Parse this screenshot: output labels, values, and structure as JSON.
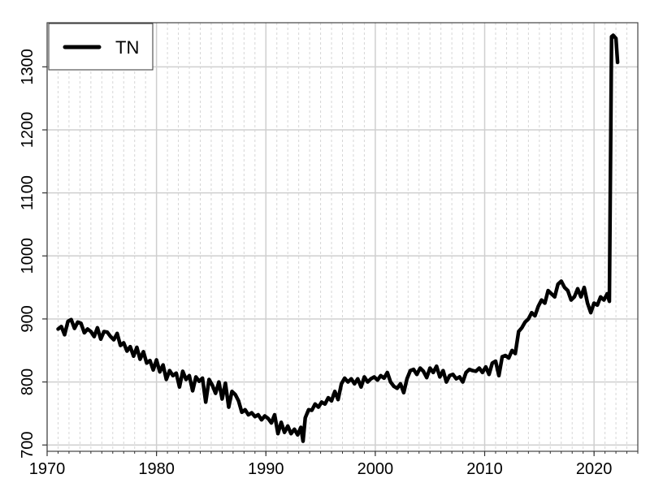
{
  "chart_data": {
    "type": "line",
    "title": "",
    "xlabel": "",
    "ylabel": "",
    "xlim": [
      1970,
      2024
    ],
    "ylim": [
      690,
      1370
    ],
    "x_ticks": [
      1970,
      1980,
      1990,
      2000,
      2010,
      2020
    ],
    "y_ticks": [
      700,
      800,
      900,
      1000,
      1100,
      1200,
      1300
    ],
    "grid": true,
    "legend": {
      "position": "top-left",
      "entries": [
        "TN"
      ]
    },
    "series": [
      {
        "name": "TN",
        "color": "#000000",
        "x": [
          1971.0,
          1971.3,
          1971.6,
          1971.9,
          1972.2,
          1972.5,
          1972.8,
          1973.1,
          1973.4,
          1973.7,
          1974.0,
          1974.3,
          1974.6,
          1974.9,
          1975.2,
          1975.5,
          1975.8,
          1976.1,
          1976.4,
          1976.7,
          1977.0,
          1977.3,
          1977.6,
          1977.9,
          1978.2,
          1978.5,
          1978.8,
          1979.1,
          1979.4,
          1979.7,
          1980.0,
          1980.3,
          1980.6,
          1980.9,
          1981.2,
          1981.5,
          1981.8,
          1982.1,
          1982.4,
          1982.7,
          1983.0,
          1983.3,
          1983.6,
          1983.9,
          1984.2,
          1984.5,
          1984.8,
          1985.1,
          1985.4,
          1985.7,
          1986.0,
          1986.3,
          1986.6,
          1986.9,
          1987.2,
          1987.5,
          1987.8,
          1988.1,
          1988.4,
          1988.7,
          1989.0,
          1989.3,
          1989.6,
          1989.9,
          1990.2,
          1990.5,
          1990.8,
          1991.1,
          1991.4,
          1991.7,
          1992.0,
          1992.3,
          1992.6,
          1992.9,
          1993.2,
          1993.4,
          1993.6,
          1993.9,
          1994.2,
          1994.5,
          1994.8,
          1995.1,
          1995.4,
          1995.7,
          1996.0,
          1996.3,
          1996.6,
          1996.9,
          1997.2,
          1997.5,
          1997.8,
          1998.1,
          1998.4,
          1998.7,
          1999.0,
          1999.3,
          1999.6,
          1999.9,
          2000.2,
          2000.5,
          2000.8,
          2001.1,
          2001.4,
          2001.7,
          2002.0,
          2002.3,
          2002.6,
          2002.9,
          2003.2,
          2003.5,
          2003.8,
          2004.1,
          2004.4,
          2004.7,
          2005.0,
          2005.3,
          2005.6,
          2005.9,
          2006.2,
          2006.5,
          2006.8,
          2007.1,
          2007.4,
          2007.7,
          2008.0,
          2008.3,
          2008.6,
          2008.9,
          2009.2,
          2009.5,
          2009.8,
          2010.1,
          2010.4,
          2010.7,
          2011.0,
          2011.3,
          2011.6,
          2011.9,
          2012.2,
          2012.5,
          2012.8,
          2013.1,
          2013.4,
          2013.7,
          2014.0,
          2014.3,
          2014.6,
          2014.9,
          2015.2,
          2015.5,
          2015.8,
          2016.1,
          2016.4,
          2016.7,
          2017.0,
          2017.3,
          2017.6,
          2017.9,
          2018.2,
          2018.5,
          2018.8,
          2019.1,
          2019.4,
          2019.7,
          2020.0,
          2020.3,
          2020.6,
          2020.9,
          2021.2,
          2021.4,
          2021.6,
          2021.75,
          2022.0,
          2022.15
        ],
        "y": [
          884,
          888,
          875,
          896,
          899,
          885,
          895,
          893,
          878,
          884,
          880,
          872,
          886,
          868,
          880,
          879,
          872,
          867,
          877,
          858,
          862,
          849,
          856,
          841,
          855,
          836,
          848,
          830,
          834,
          819,
          835,
          816,
          827,
          804,
          818,
          810,
          814,
          792,
          817,
          804,
          810,
          786,
          808,
          801,
          806,
          768,
          804,
          795,
          782,
          800,
          773,
          798,
          760,
          785,
          780,
          770,
          752,
          756,
          748,
          751,
          745,
          748,
          740,
          746,
          742,
          735,
          748,
          718,
          736,
          720,
          730,
          718,
          725,
          716,
          728,
          706,
          743,
          756,
          755,
          765,
          760,
          768,
          765,
          775,
          770,
          785,
          772,
          797,
          806,
          800,
          805,
          797,
          805,
          792,
          808,
          800,
          805,
          808,
          803,
          810,
          806,
          815,
          800,
          793,
          790,
          797,
          783,
          805,
          818,
          820,
          812,
          822,
          817,
          807,
          822,
          815,
          825,
          808,
          818,
          800,
          810,
          812,
          805,
          808,
          800,
          815,
          820,
          818,
          817,
          822,
          815,
          824,
          812,
          830,
          833,
          810,
          840,
          842,
          838,
          850,
          845,
          880,
          886,
          895,
          900,
          910,
          905,
          920,
          930,
          925,
          945,
          940,
          935,
          955,
          960,
          950,
          945,
          930,
          935,
          948,
          935,
          950,
          925,
          910,
          925,
          922,
          935,
          930,
          940,
          928,
          1348,
          1350,
          1345,
          1307
        ]
      }
    ]
  }
}
